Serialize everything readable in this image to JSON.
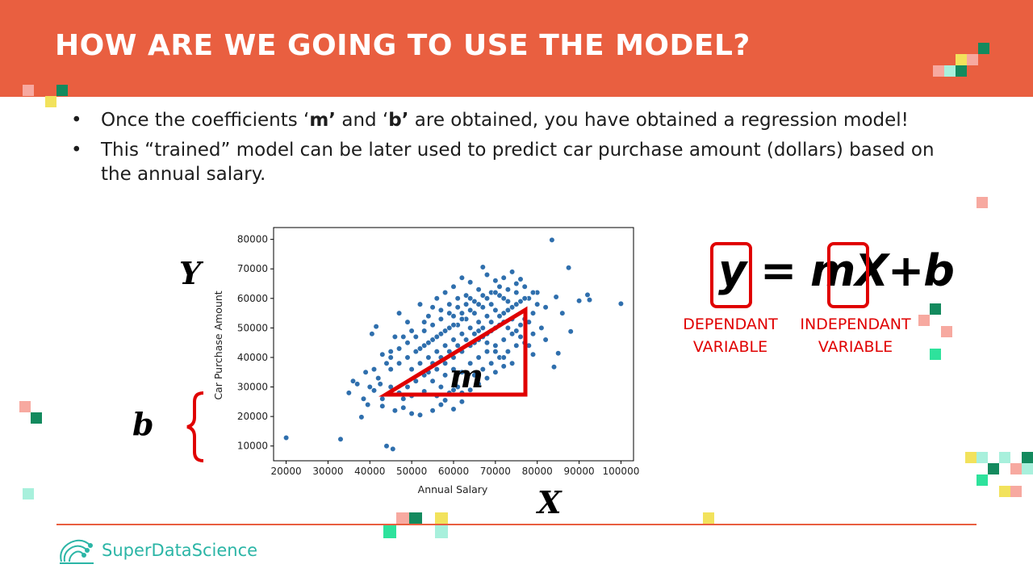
{
  "slide": {
    "title": "HOW ARE WE GOING TO USE THE MODEL?",
    "bullets": [
      {
        "pre": "Once the coefficients ‘",
        "b1": "m’",
        "mid": " and ‘",
        "b2": "b’",
        "post": " are obtained, you have obtained a regression model!"
      },
      {
        "line1": "This “trained” model can be later used to predict car purchase amount (dollars) based on",
        "line2": "the annual salary."
      }
    ],
    "labels": {
      "Y": "Y",
      "X": "X",
      "b": "b",
      "m": "m"
    },
    "equation": "y = mX+b",
    "dependant": {
      "line1": "DEPENDANT",
      "line2": "VARIABLE"
    },
    "independant": {
      "line1": "INDEPENDANT",
      "line2": "VARIABLE"
    },
    "brand": "SuperDataScience"
  },
  "colors": {
    "header": "#e95f40",
    "accent_red": "#e00000",
    "point": "#2f6fad",
    "brand_teal": "#2bb5a6"
  },
  "chart_data": {
    "type": "scatter",
    "xlabel": "Annual Salary",
    "ylabel": "Car Purchase Amount",
    "xlim": [
      17000,
      103000
    ],
    "ylim": [
      5000,
      84000
    ],
    "xticks": [
      20000,
      30000,
      40000,
      50000,
      60000,
      70000,
      80000,
      90000,
      100000
    ],
    "yticks": [
      10000,
      20000,
      30000,
      40000,
      50000,
      60000,
      70000,
      80000
    ],
    "points": [
      [
        20000,
        12800
      ],
      [
        33000,
        12300
      ],
      [
        44000,
        10000
      ],
      [
        45500,
        9000
      ],
      [
        100000,
        58200
      ],
      [
        83500,
        79800
      ],
      [
        67000,
        70600
      ],
      [
        87500,
        70400
      ],
      [
        84000,
        36800
      ],
      [
        85000,
        41400
      ],
      [
        88000,
        48800
      ],
      [
        92000,
        61200
      ],
      [
        90000,
        59200
      ],
      [
        92500,
        59500
      ],
      [
        80000,
        62000
      ],
      [
        78000,
        52000
      ],
      [
        82000,
        57000
      ],
      [
        79000,
        48000
      ],
      [
        86000,
        55000
      ],
      [
        84500,
        60500
      ],
      [
        38000,
        19800
      ],
      [
        40000,
        30000
      ],
      [
        41000,
        28800
      ],
      [
        43000,
        23500
      ],
      [
        46000,
        22000
      ],
      [
        48000,
        23000
      ],
      [
        50000,
        21000
      ],
      [
        52000,
        20500
      ],
      [
        55000,
        22000
      ],
      [
        57000,
        24000
      ],
      [
        60000,
        22500
      ],
      [
        62000,
        25000
      ],
      [
        35000,
        28000
      ],
      [
        36000,
        32000
      ],
      [
        38500,
        26000
      ],
      [
        42000,
        33000
      ],
      [
        44000,
        38000
      ],
      [
        45000,
        42000
      ],
      [
        46000,
        47000
      ],
      [
        47000,
        55000
      ],
      [
        49000,
        52000
      ],
      [
        40500,
        48000
      ],
      [
        41500,
        50500
      ],
      [
        52000,
        58000
      ],
      [
        54000,
        54000
      ],
      [
        56000,
        60000
      ],
      [
        58000,
        62000
      ],
      [
        60000,
        64000
      ],
      [
        62000,
        67000
      ],
      [
        64000,
        65500
      ],
      [
        66000,
        63000
      ],
      [
        68000,
        68000
      ],
      [
        70000,
        66000
      ],
      [
        72000,
        67000
      ],
      [
        74000,
        69000
      ],
      [
        76000,
        66500
      ],
      [
        75000,
        62000
      ],
      [
        73000,
        59000
      ],
      [
        71000,
        61000
      ],
      [
        69000,
        58000
      ],
      [
        67000,
        57000
      ],
      [
        65000,
        55000
      ],
      [
        63000,
        53000
      ],
      [
        61000,
        51000
      ],
      [
        59000,
        50000
      ],
      [
        57000,
        48000
      ],
      [
        55000,
        46000
      ],
      [
        53000,
        44000
      ],
      [
        51000,
        42000
      ],
      [
        49000,
        40000
      ],
      [
        47000,
        38000
      ],
      [
        45000,
        36000
      ],
      [
        50000,
        36000
      ],
      [
        52000,
        38000
      ],
      [
        54000,
        40000
      ],
      [
        56000,
        42000
      ],
      [
        58000,
        44000
      ],
      [
        60000,
        46000
      ],
      [
        62000,
        48000
      ],
      [
        64000,
        50000
      ],
      [
        66000,
        52000
      ],
      [
        68000,
        54000
      ],
      [
        70000,
        56000
      ],
      [
        72000,
        55000
      ],
      [
        74000,
        53000
      ],
      [
        76000,
        51000
      ],
      [
        78000,
        44000
      ],
      [
        75000,
        44000
      ],
      [
        73000,
        42000
      ],
      [
        71000,
        40000
      ],
      [
        69000,
        38000
      ],
      [
        67000,
        36000
      ],
      [
        65000,
        34000
      ],
      [
        63000,
        32000
      ],
      [
        61000,
        30000
      ],
      [
        59000,
        28000
      ],
      [
        57000,
        30000
      ],
      [
        55000,
        32000
      ],
      [
        53000,
        34000
      ],
      [
        51000,
        32000
      ],
      [
        49000,
        30000
      ],
      [
        47000,
        28000
      ],
      [
        45000,
        30000
      ],
      [
        43000,
        26000
      ],
      [
        48000,
        26000
      ],
      [
        50000,
        27000
      ],
      [
        53000,
        28500
      ],
      [
        56000,
        27000
      ],
      [
        58000,
        25500
      ],
      [
        60000,
        29000
      ],
      [
        62000,
        35000
      ],
      [
        64000,
        38000
      ],
      [
        66000,
        40000
      ],
      [
        68000,
        42000
      ],
      [
        70000,
        44000
      ],
      [
        72000,
        46000
      ],
      [
        74000,
        48000
      ],
      [
        76000,
        47000
      ],
      [
        77000,
        53000
      ],
      [
        63000,
        58000
      ],
      [
        61000,
        57000
      ],
      [
        59000,
        55000
      ],
      [
        57000,
        53000
      ],
      [
        55000,
        51000
      ],
      [
        53000,
        49000
      ],
      [
        51000,
        47000
      ],
      [
        49000,
        45000
      ],
      [
        47000,
        43000
      ],
      [
        45000,
        40000
      ],
      [
        43000,
        41000
      ],
      [
        41000,
        36000
      ],
      [
        39000,
        35000
      ],
      [
        37000,
        31000
      ],
      [
        39500,
        24000
      ],
      [
        42500,
        31000
      ],
      [
        65000,
        45000
      ],
      [
        67000,
        47000
      ],
      [
        69000,
        49000
      ],
      [
        71000,
        51000
      ],
      [
        73000,
        50000
      ],
      [
        75000,
        49000
      ],
      [
        77000,
        45000
      ],
      [
        79000,
        41000
      ],
      [
        72000,
        37000
      ],
      [
        70000,
        35000
      ],
      [
        68000,
        33000
      ],
      [
        66000,
        31000
      ],
      [
        64000,
        29000
      ],
      [
        62000,
        28000
      ],
      [
        58000,
        38000
      ],
      [
        56000,
        36000
      ],
      [
        54000,
        35000
      ],
      [
        52000,
        43000
      ],
      [
        50000,
        49000
      ],
      [
        48000,
        47000
      ],
      [
        60000,
        40000
      ],
      [
        62000,
        42000
      ],
      [
        64000,
        44000
      ],
      [
        66000,
        46000
      ],
      [
        68000,
        48000
      ],
      [
        70000,
        50000
      ],
      [
        72000,
        52000
      ],
      [
        74000,
        57000
      ],
      [
        76000,
        59000
      ],
      [
        78000,
        60000
      ],
      [
        80000,
        58000
      ],
      [
        81000,
        50000
      ],
      [
        82000,
        46000
      ],
      [
        79000,
        55000
      ],
      [
        77000,
        64000
      ],
      [
        75000,
        65000
      ],
      [
        73000,
        63000
      ],
      [
        71000,
        64000
      ],
      [
        69000,
        62000
      ],
      [
        67000,
        61000
      ],
      [
        65000,
        59000
      ],
      [
        63000,
        61000
      ],
      [
        61000,
        60000
      ],
      [
        59000,
        58000
      ],
      [
        57000,
        56000
      ],
      [
        55000,
        57000
      ],
      [
        53000,
        52000
      ],
      [
        60000,
        54000
      ],
      [
        62000,
        55000
      ],
      [
        64000,
        56000
      ],
      [
        66000,
        49000
      ],
      [
        68000,
        45000
      ],
      [
        70000,
        42000
      ],
      [
        72000,
        40000
      ],
      [
        74000,
        38000
      ],
      [
        58000,
        34000
      ],
      [
        60000,
        36000
      ],
      [
        55000,
        38000
      ],
      [
        57000,
        40000
      ],
      [
        59000,
        42000
      ],
      [
        61000,
        44000
      ],
      [
        63000,
        46000
      ],
      [
        65000,
        48000
      ],
      [
        67000,
        50000
      ],
      [
        69000,
        52000
      ],
      [
        71000,
        54000
      ],
      [
        73000,
        56000
      ],
      [
        75000,
        58000
      ],
      [
        77000,
        60000
      ],
      [
        79000,
        62000
      ],
      [
        54000,
        45000
      ],
      [
        56000,
        47000
      ],
      [
        58000,
        49000
      ],
      [
        60000,
        51000
      ],
      [
        62000,
        53000
      ],
      [
        64000,
        60000
      ],
      [
        66000,
        58000
      ],
      [
        68000,
        60000
      ],
      [
        70000,
        62000
      ],
      [
        72000,
        60000
      ]
    ]
  }
}
